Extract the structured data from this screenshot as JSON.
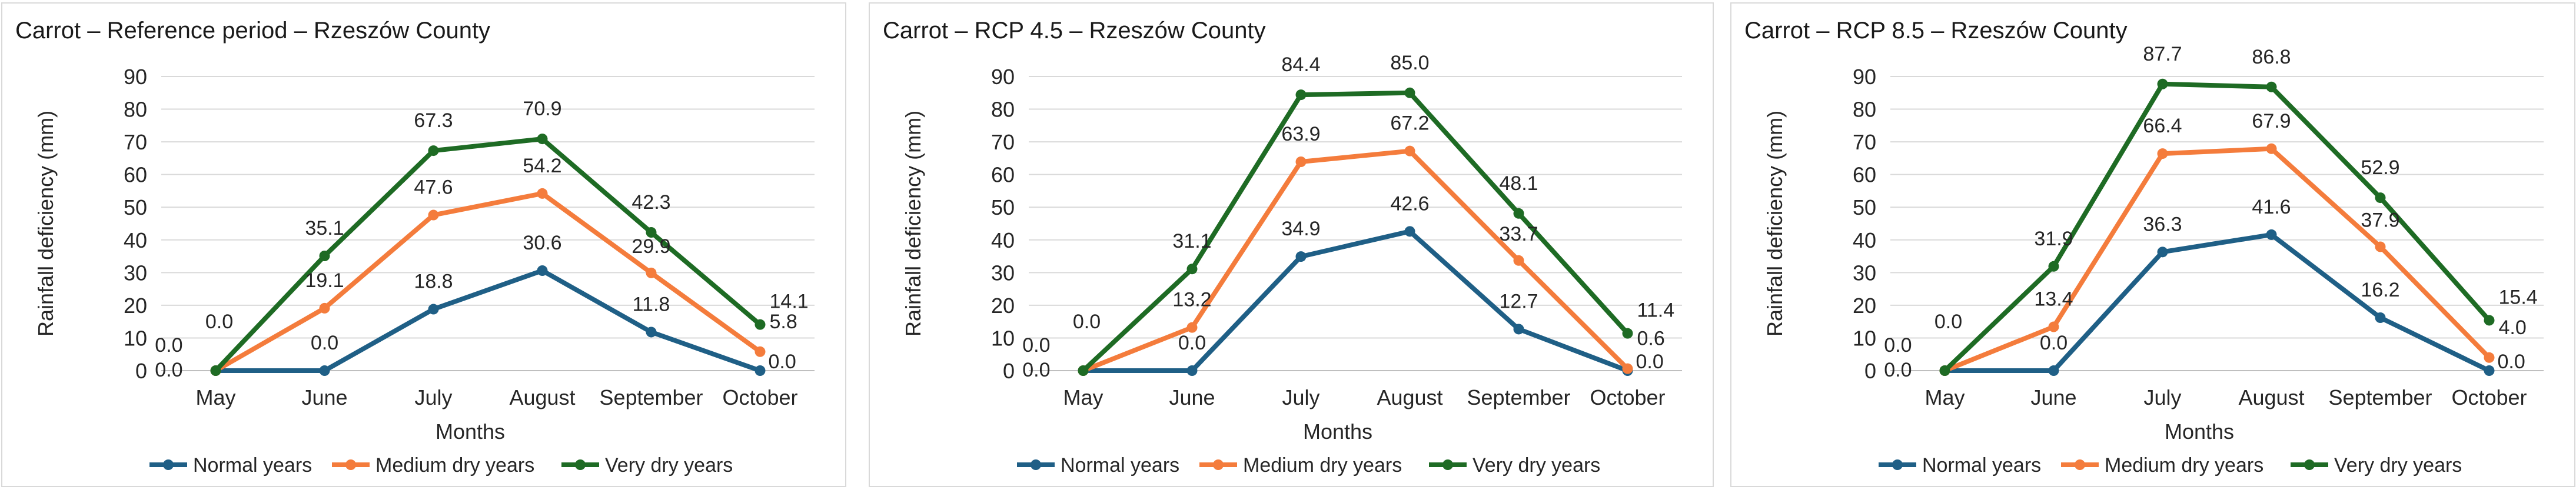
{
  "chart_data": [
    {
      "type": "line",
      "title": "Carrot – Reference period – Rzeszów County",
      "xlabel": "Months",
      "ylabel": "Rainfall deficiency  (mm)",
      "ylim": [
        0,
        90
      ],
      "yticks": [
        0,
        10,
        20,
        30,
        40,
        50,
        60,
        70,
        80,
        90
      ],
      "categories": [
        "May",
        "June",
        "July",
        "August",
        "September",
        "October"
      ],
      "legend_position": "bottom",
      "series": [
        {
          "name": "Normal years",
          "color": "#1f5f86",
          "values": [
            0.0,
            0.0,
            18.8,
            30.6,
            11.8,
            0.0
          ]
        },
        {
          "name": "Medium dry years",
          "color": "#f47c3c",
          "values": [
            0.0,
            19.1,
            47.6,
            54.2,
            29.9,
            5.8
          ]
        },
        {
          "name": "Very dry years",
          "color": "#1e6b24",
          "values": [
            0.0,
            35.1,
            67.3,
            70.9,
            42.3,
            14.1
          ]
        }
      ],
      "labels": [
        [
          "0.0",
          "0.0",
          "18.8",
          "30.6",
          "11.8",
          "0.0"
        ],
        [
          "0.0",
          "19.1",
          "47.6",
          "54.2",
          "29.9",
          "5.8"
        ],
        [
          "0.0",
          "35.1",
          "67.3",
          "70.9",
          "42.3",
          "14.1"
        ]
      ]
    },
    {
      "type": "line",
      "title": "Carrot – RCP 4.5 – Rzeszów County",
      "xlabel": "Months",
      "ylabel": "Rainfall deficiency  (mm)",
      "ylim": [
        0,
        90
      ],
      "yticks": [
        0,
        10,
        20,
        30,
        40,
        50,
        60,
        70,
        80,
        90
      ],
      "categories": [
        "May",
        "June",
        "July",
        "August",
        "September",
        "October"
      ],
      "legend_position": "bottom",
      "series": [
        {
          "name": "Normal years",
          "color": "#1f5f86",
          "values": [
            0.0,
            0.0,
            34.9,
            42.6,
            12.7,
            0.0
          ]
        },
        {
          "name": "Medium dry years",
          "color": "#f47c3c",
          "values": [
            0.0,
            13.2,
            63.9,
            67.2,
            33.7,
            0.6
          ]
        },
        {
          "name": "Very dry years",
          "color": "#1e6b24",
          "values": [
            0.0,
            31.1,
            84.4,
            85.0,
            48.1,
            11.4
          ]
        }
      ],
      "labels": [
        [
          "0.0",
          "0.0",
          "34.9",
          "42.6",
          "12.7",
          "0.0"
        ],
        [
          "0.0",
          "13.2",
          "63.9",
          "67.2",
          "33.7",
          "0.6"
        ],
        [
          "0.0",
          "31.1",
          "84.4",
          "85.0",
          "48.1",
          "11.4"
        ]
      ]
    },
    {
      "type": "line",
      "title": "Carrot – RCP 8.5 – Rzeszów County",
      "xlabel": "Months",
      "ylabel": "Rainfall deficiency  (mm)",
      "ylim": [
        0,
        90
      ],
      "yticks": [
        0,
        10,
        20,
        30,
        40,
        50,
        60,
        70,
        80,
        90
      ],
      "categories": [
        "May",
        "June",
        "July",
        "August",
        "September",
        "October"
      ],
      "legend_position": "bottom",
      "series": [
        {
          "name": "Normal years",
          "color": "#1f5f86",
          "values": [
            0.0,
            0.0,
            36.3,
            41.6,
            16.2,
            0.0
          ]
        },
        {
          "name": "Medium dry years",
          "color": "#f47c3c",
          "values": [
            0.0,
            13.4,
            66.4,
            67.9,
            37.9,
            4.0
          ]
        },
        {
          "name": "Very dry years",
          "color": "#1e6b24",
          "values": [
            0.0,
            31.9,
            87.7,
            86.8,
            52.9,
            15.4
          ]
        }
      ],
      "labels": [
        [
          "0.0",
          "0.0",
          "36.3",
          "41.6",
          "16.2",
          "0.0"
        ],
        [
          "0.0",
          "13.4",
          "66.4",
          "67.9",
          "37.9",
          "4.0"
        ],
        [
          "0.0",
          "31.9",
          "87.7",
          "86.8",
          "52.9",
          "15.4"
        ]
      ]
    }
  ]
}
